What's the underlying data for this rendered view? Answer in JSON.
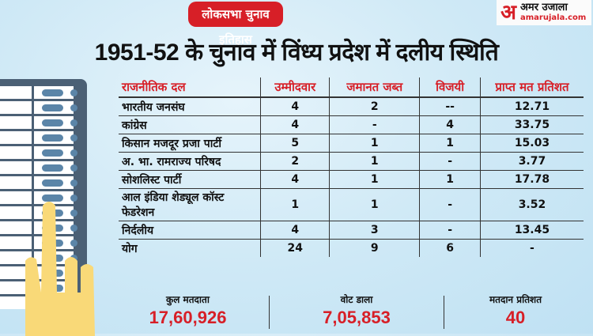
{
  "banner": {
    "label": "लोकसभा चुनाव इतिहास",
    "color": "#d71f27"
  },
  "logo": {
    "mark": "अ",
    "hindi": "अमर उजाला",
    "english": "amarujala.com"
  },
  "title": "1951-52 के चुनाव में विंध्य प्रदेश में दलीय स्थिति",
  "table": {
    "headers": [
      "राजनीतिक दल",
      "उम्मीदवार",
      "जमानत जब्त",
      "विजयी",
      "प्राप्त मत प्रतिशत"
    ],
    "rows": [
      [
        "भारतीय जनसंघ",
        "4",
        "2",
        "--",
        "12.71"
      ],
      [
        "कांग्रेस",
        "4",
        "-",
        "4",
        "33.75"
      ],
      [
        "किसान मजदूर प्रजा पार्टी",
        "5",
        "1",
        "1",
        "15.03"
      ],
      [
        "अ. भा. रामराज्य परिषद",
        "2",
        "1",
        "-",
        "3.77"
      ],
      [
        "सोशलिस्ट पार्टी",
        "4",
        "1",
        "1",
        "17.78"
      ],
      [
        "आल इंडिया शेड्यूल कॉस्ट फेडरेशन",
        "1",
        "1",
        "-",
        "3.52"
      ],
      [
        "निर्दलीय",
        "4",
        "3",
        "-",
        "13.45"
      ],
      [
        "योग",
        "24",
        "9",
        "6",
        "-"
      ]
    ]
  },
  "summary": [
    {
      "label": "कुल मतदाता",
      "value": "17,60,926"
    },
    {
      "label": "वोट डाला",
      "value": "7,05,853"
    },
    {
      "label": "मतदान प्रतिशत",
      "value": "40"
    }
  ],
  "colors": {
    "accent": "#d71f27",
    "evm": "#4b6075",
    "hand": "#f9d978"
  }
}
